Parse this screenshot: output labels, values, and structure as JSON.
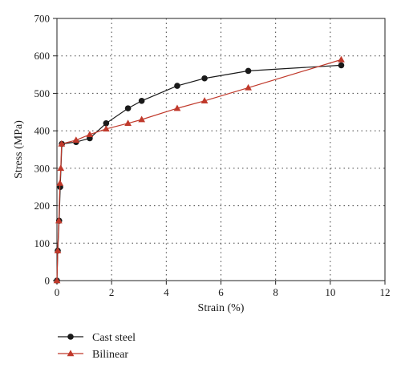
{
  "chart_data": {
    "type": "line",
    "xlabel": "Strain (%)",
    "ylabel": "Stress (MPa)",
    "xlim": [
      0,
      12
    ],
    "ylim": [
      0,
      700
    ],
    "x_ticks": [
      0,
      2,
      4,
      6,
      8,
      10,
      12
    ],
    "y_ticks": [
      0,
      100,
      200,
      300,
      400,
      500,
      600,
      700
    ],
    "grid": true,
    "grid_style": "dotted",
    "legend_position": "bottom-left",
    "series": [
      {
        "name": "Cast steel",
        "color": "#1a1a1a",
        "marker": "circle",
        "x": [
          0,
          0.03,
          0.08,
          0.12,
          0.18,
          0.7,
          1.2,
          1.8,
          2.6,
          3.1,
          4.4,
          5.4,
          7.0,
          10.4
        ],
        "y": [
          0,
          80,
          160,
          250,
          365,
          370,
          380,
          420,
          460,
          480,
          520,
          540,
          560,
          575
        ]
      },
      {
        "name": "Bilinear",
        "color": "#c0392b",
        "marker": "triangle",
        "x": [
          0,
          0.03,
          0.07,
          0.11,
          0.14,
          0.17,
          0.7,
          1.2,
          1.8,
          2.6,
          3.1,
          4.4,
          5.4,
          7.0,
          10.4
        ],
        "y": [
          0,
          80,
          160,
          260,
          300,
          365,
          375,
          390,
          405,
          420,
          430,
          460,
          480,
          515,
          590
        ]
      }
    ]
  }
}
